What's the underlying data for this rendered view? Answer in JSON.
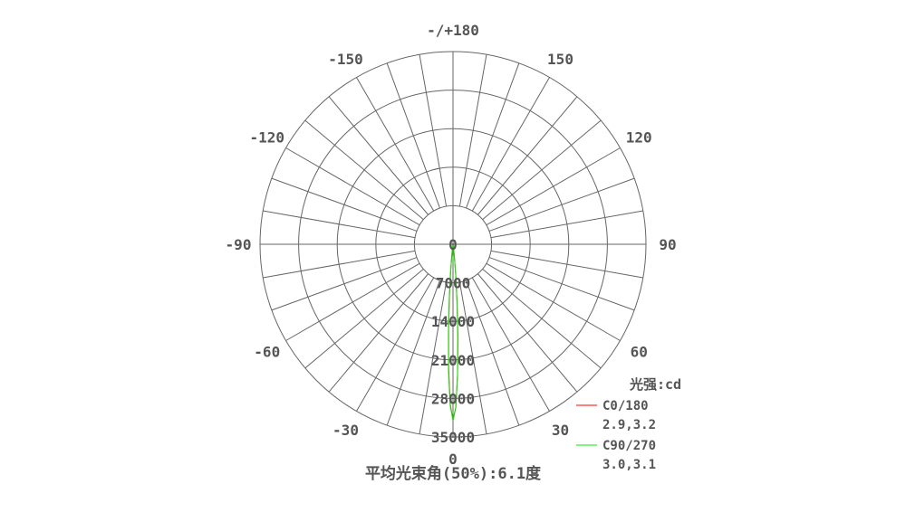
{
  "chart_data": {
    "type": "polar-line",
    "title": "平均光束角(50%):6.1度",
    "unit_label": "光强:cd",
    "angle_tick_labels": [
      {
        "angle": 180,
        "label": "-/+180"
      },
      {
        "angle": -150,
        "label": "-150"
      },
      {
        "angle": 150,
        "label": "150"
      },
      {
        "angle": -120,
        "label": "-120"
      },
      {
        "angle": 120,
        "label": "120"
      },
      {
        "angle": -90,
        "label": "-90"
      },
      {
        "angle": 90,
        "label": "90"
      },
      {
        "angle": -60,
        "label": "-60"
      },
      {
        "angle": 60,
        "label": "60"
      },
      {
        "angle": -30,
        "label": "-30"
      },
      {
        "angle": 30,
        "label": "30"
      },
      {
        "angle": 0,
        "label": "0"
      }
    ],
    "radial_tick_labels": [
      "0",
      "7000",
      "14000",
      "21000",
      "28000",
      "35000"
    ],
    "radial_range": [
      0,
      35000
    ],
    "angle_grid_step": 10,
    "grid": true,
    "legend_placement": "bottom-right",
    "angles": [
      -10,
      -9,
      -8,
      -7,
      -6,
      -5,
      -4,
      -3,
      -2,
      -1,
      0,
      1,
      2,
      3,
      4,
      5,
      6,
      7,
      8,
      9,
      10
    ],
    "series": [
      {
        "name": "C0/180",
        "subtitle": "2.9,3.2",
        "color": "#ff0000",
        "values": [
          20,
          70,
          260,
          800,
          2100,
          4700,
          9000,
          15300,
          22600,
          29000,
          32000,
          29600,
          23800,
          17000,
          10800,
          6000,
          2900,
          1200,
          430,
          130,
          35
        ]
      },
      {
        "name": "C90/270",
        "subtitle": "3.0,3.1",
        "color": "#00ee00",
        "values": [
          25,
          85,
          300,
          900,
          2300,
          5100,
          9700,
          16000,
          23200,
          29300,
          32000,
          29500,
          23600,
          16600,
          10300,
          5500,
          2600,
          1050,
          370,
          110,
          30
        ]
      }
    ]
  }
}
